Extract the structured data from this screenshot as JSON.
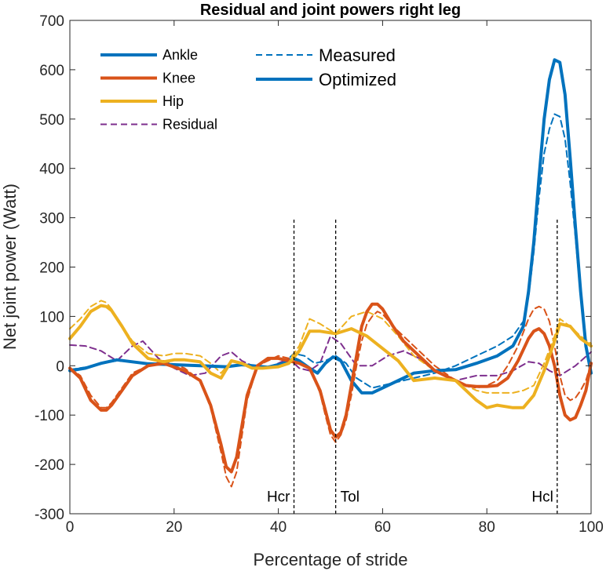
{
  "chart_data": {
    "type": "line",
    "title": "Residual and joint powers right leg",
    "xlabel": "Percentage of stride",
    "ylabel": "Net joint power (Watt)",
    "xlim": [
      0,
      100
    ],
    "ylim": [
      -300,
      700
    ],
    "xticks": [
      "0",
      "20",
      "40",
      "60",
      "80",
      "100"
    ],
    "yticks": [
      "-300",
      "-200",
      "-100",
      "0",
      "100",
      "200",
      "300",
      "400",
      "500",
      "600",
      "700"
    ],
    "colors": {
      "ankle": "#0072BD",
      "knee": "#D95319",
      "hip": "#EDB120",
      "residual": "#7E2F8E"
    },
    "legend": {
      "joints": [
        "Ankle",
        "Knee",
        "Hip",
        "Residual"
      ],
      "styles": [
        "Measured",
        "Optimized"
      ]
    },
    "events": [
      {
        "label": "Hcr",
        "x": 43
      },
      {
        "label": "Tol",
        "x": 51
      },
      {
        "label": "Hcl",
        "x": 93.5
      }
    ],
    "event_ylim": [
      -300,
      300
    ],
    "series": [
      {
        "name": "Ankle",
        "style": "Optimized",
        "color": "ankle",
        "x": [
          0,
          3,
          6,
          9,
          12,
          15,
          20,
          25,
          30,
          33,
          38,
          41,
          43,
          44,
          46,
          47.5,
          49,
          50.5,
          52,
          54,
          56,
          58,
          62,
          66,
          70,
          74,
          78,
          82,
          85,
          87,
          88,
          89,
          90,
          91,
          92,
          93,
          94,
          95,
          96,
          97,
          98,
          99,
          100
        ],
        "values": [
          -10,
          -5,
          5,
          12,
          8,
          4,
          2,
          0,
          -2,
          2,
          -3,
          5,
          15,
          10,
          -5,
          -15,
          5,
          18,
          10,
          -30,
          -55,
          -55,
          -35,
          -15,
          -10,
          -8,
          5,
          20,
          40,
          80,
          150,
          250,
          380,
          500,
          580,
          620,
          615,
          550,
          420,
          280,
          150,
          40,
          -15
        ]
      },
      {
        "name": "Ankle",
        "style": "Measured",
        "color": "ankle",
        "x": [
          0,
          3,
          6,
          9,
          12,
          15,
          20,
          25,
          30,
          33,
          38,
          41,
          43,
          45,
          47,
          49,
          51,
          53,
          55,
          58,
          62,
          66,
          70,
          74,
          78,
          82,
          85,
          87,
          88,
          89,
          90,
          91,
          92,
          93,
          94,
          95,
          96,
          97,
          98,
          99,
          100
        ],
        "values": [
          -8,
          -3,
          5,
          10,
          8,
          4,
          2,
          0,
          -2,
          2,
          -2,
          5,
          25,
          20,
          5,
          10,
          20,
          5,
          -25,
          -45,
          -35,
          -25,
          -15,
          0,
          20,
          40,
          60,
          90,
          140,
          230,
          340,
          430,
          480,
          510,
          505,
          460,
          370,
          260,
          140,
          40,
          -10
        ]
      },
      {
        "name": "Knee",
        "style": "Optimized",
        "color": "knee",
        "x": [
          0,
          2,
          4,
          6,
          7,
          8,
          10,
          12,
          15,
          18,
          22,
          25,
          27,
          29,
          30,
          31,
          32,
          34,
          36,
          38,
          40,
          42,
          44,
          46,
          48,
          49,
          50,
          51,
          52,
          53,
          54,
          55,
          56,
          57,
          58,
          59,
          60,
          62,
          64,
          66,
          68,
          70,
          72,
          74,
          76,
          78,
          80,
          82,
          84,
          86,
          88,
          89,
          90,
          91,
          92,
          93,
          94,
          95,
          96,
          97,
          98,
          99,
          100
        ],
        "values": [
          -5,
          -25,
          -70,
          -90,
          -90,
          -80,
          -50,
          -20,
          0,
          5,
          -10,
          -30,
          -80,
          -160,
          -205,
          -215,
          -185,
          -60,
          0,
          15,
          15,
          10,
          5,
          -5,
          -50,
          -90,
          -130,
          -145,
          -135,
          -100,
          -40,
          20,
          80,
          110,
          125,
          125,
          115,
          80,
          50,
          30,
          10,
          -10,
          -20,
          -30,
          -40,
          -42,
          -42,
          -40,
          -25,
          10,
          55,
          70,
          75,
          65,
          40,
          0,
          -60,
          -100,
          -110,
          -105,
          -80,
          -50,
          5
        ]
      },
      {
        "name": "Knee",
        "style": "Measured",
        "color": "knee",
        "x": [
          0,
          2,
          4,
          6,
          7,
          8,
          10,
          12,
          15,
          18,
          22,
          25,
          27,
          29,
          30,
          31,
          32,
          34,
          36,
          38,
          40,
          42,
          44,
          46,
          48,
          49,
          50,
          51,
          52,
          53,
          54,
          55,
          56,
          57,
          58,
          59,
          60,
          62,
          64,
          66,
          68,
          70,
          72,
          74,
          76,
          78,
          80,
          82,
          84,
          86,
          88,
          89,
          90,
          91,
          92,
          93,
          94,
          95,
          96,
          97,
          98,
          99,
          100
        ],
        "values": [
          -5,
          -20,
          -60,
          -85,
          -85,
          -75,
          -45,
          -15,
          0,
          10,
          -5,
          -30,
          -85,
          -175,
          -225,
          -245,
          -215,
          -70,
          0,
          10,
          20,
          15,
          5,
          -5,
          -55,
          -100,
          -140,
          -155,
          -140,
          -110,
          -60,
          0,
          50,
          85,
          100,
          110,
          105,
          80,
          60,
          40,
          20,
          0,
          -15,
          -30,
          -40,
          -45,
          -40,
          -30,
          0,
          40,
          95,
          115,
          120,
          115,
          90,
          40,
          -20,
          -60,
          -70,
          -65,
          -50,
          -30,
          5
        ]
      },
      {
        "name": "Hip",
        "style": "Optimized",
        "color": "hip",
        "x": [
          0,
          2,
          4,
          6,
          7,
          8,
          10,
          12,
          15,
          18,
          20,
          22,
          25,
          27,
          29,
          31,
          33,
          35,
          37,
          40,
          42,
          44,
          46,
          48,
          51,
          54,
          57,
          60,
          63,
          66,
          70,
          74,
          78,
          80,
          82,
          85,
          87,
          89,
          91,
          93,
          94,
          96,
          98,
          100
        ],
        "values": [
          55,
          80,
          110,
          122,
          120,
          112,
          80,
          45,
          15,
          8,
          12,
          12,
          8,
          -15,
          -25,
          10,
          5,
          -5,
          -5,
          -2,
          5,
          30,
          70,
          70,
          65,
          75,
          60,
          35,
          10,
          -30,
          -25,
          -30,
          -70,
          -85,
          -80,
          -85,
          -85,
          -60,
          -10,
          50,
          85,
          80,
          55,
          40
        ]
      },
      {
        "name": "Hip",
        "style": "Measured",
        "color": "hip",
        "x": [
          0,
          2,
          4,
          6,
          7,
          8,
          10,
          12,
          15,
          18,
          20,
          22,
          25,
          27,
          29,
          31,
          33,
          35,
          37,
          40,
          42,
          44,
          46,
          48,
          51,
          54,
          57,
          60,
          63,
          66,
          70,
          74,
          78,
          80,
          82,
          85,
          87,
          89,
          91,
          93,
          94,
          96,
          98,
          100
        ],
        "values": [
          75,
          95,
          120,
          132,
          128,
          115,
          80,
          50,
          25,
          20,
          25,
          25,
          20,
          5,
          -15,
          10,
          5,
          0,
          -5,
          0,
          10,
          40,
          95,
          85,
          65,
          100,
          110,
          95,
          60,
          20,
          -10,
          -30,
          -50,
          -55,
          -55,
          -55,
          -50,
          -40,
          5,
          60,
          95,
          80,
          60,
          45
        ]
      },
      {
        "name": "Residual",
        "style": "Measured",
        "color": "residual",
        "x": [
          0,
          3,
          6,
          9,
          12,
          14,
          17,
          20,
          23,
          26,
          29,
          31,
          33,
          36,
          39,
          42,
          44,
          46,
          48,
          50,
          52,
          55,
          58,
          61,
          64,
          67,
          70,
          74,
          78,
          82,
          85,
          88,
          90,
          92,
          94,
          97,
          100
        ],
        "values": [
          42,
          40,
          30,
          10,
          40,
          50,
          15,
          -5,
          -20,
          -15,
          20,
          28,
          10,
          -5,
          0,
          15,
          -5,
          -10,
          5,
          60,
          45,
          0,
          0,
          20,
          30,
          15,
          -10,
          -30,
          -20,
          -20,
          -10,
          8,
          5,
          -10,
          -20,
          0,
          28
        ]
      }
    ]
  }
}
